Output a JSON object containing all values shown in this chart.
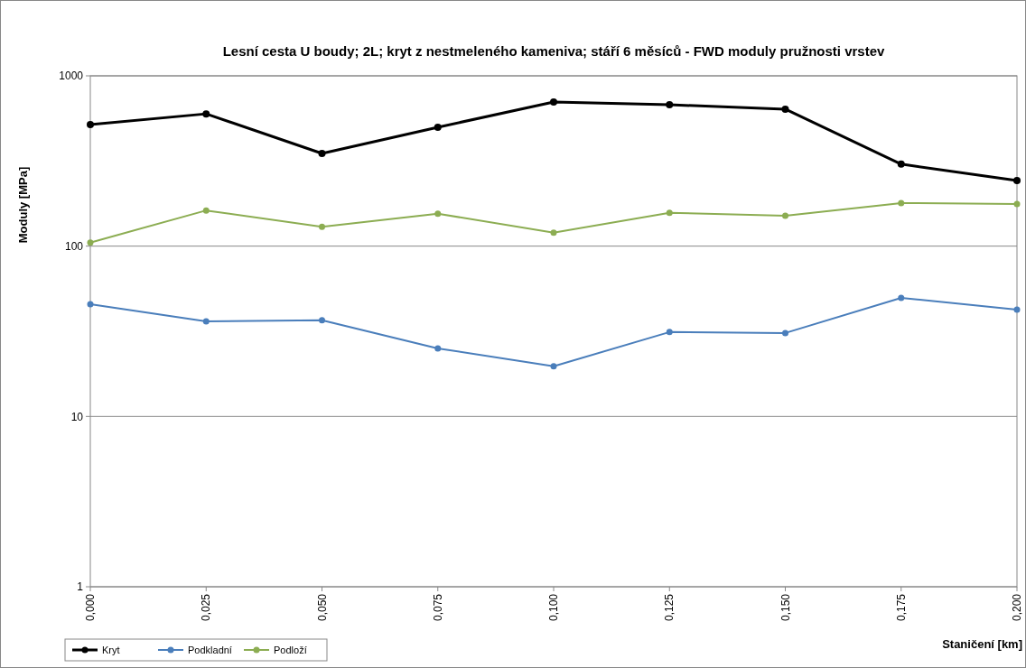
{
  "chart_data": {
    "type": "line",
    "title": "Lesní cesta U boudy;  2L; kryt z nestmeleného kameniva; stáří  6 měsíců - FWD moduly pružnosti vrstev",
    "xlabel": "Staničení [km]",
    "ylabel": "Moduly [MPa]",
    "x": [
      0,
      0.025,
      0.05,
      0.075,
      0.1,
      0.125,
      0.15,
      0.175,
      0.2
    ],
    "xlim": [
      0,
      0.2
    ],
    "xticks": [
      {
        "value": 0,
        "label": "0,000"
      },
      {
        "value": 0.025,
        "label": "0,025"
      },
      {
        "value": 0.05,
        "label": "0,050"
      },
      {
        "value": 0.075,
        "label": "0,075"
      },
      {
        "value": 0.1,
        "label": "0,100"
      },
      {
        "value": 0.125,
        "label": "0,125"
      },
      {
        "value": 0.15,
        "label": "0,150"
      },
      {
        "value": 0.175,
        "label": "0,175"
      },
      {
        "value": 0.2,
        "label": "0,200"
      }
    ],
    "ylim": [
      1,
      1000
    ],
    "yticks": [
      1,
      10,
      100,
      1000
    ],
    "log": "y",
    "grid": "y",
    "legend": "bottom left",
    "marker": "circle",
    "line_style": "solid",
    "series": [
      {
        "name": "Kryt",
        "color": "#000000",
        "values": [
          518,
          598,
          350,
          499,
          702,
          676,
          637,
          303,
          243
        ]
      },
      {
        "name": "Podkladní",
        "color": "#4a7ebb",
        "values": [
          45.6,
          36.2,
          36.7,
          25.1,
          19.7,
          31.3,
          30.9,
          49.7,
          42.4
        ]
      },
      {
        "name": "Podloží",
        "color": "#8cad52",
        "values": [
          105,
          162,
          130,
          155,
          120,
          157,
          151,
          179,
          177
        ]
      }
    ]
  }
}
